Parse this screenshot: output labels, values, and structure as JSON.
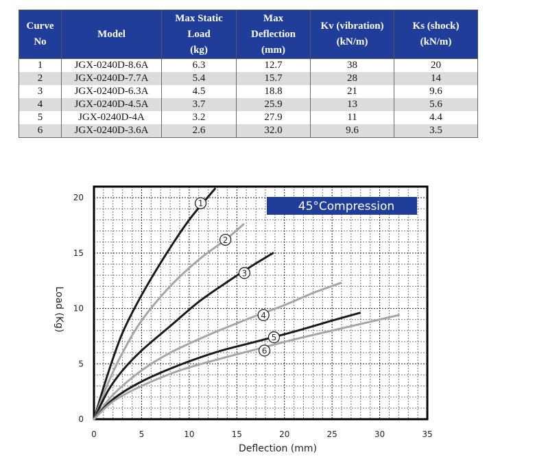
{
  "table": {
    "headers": [
      "Curve No",
      "Model",
      "Max Static Load (kg)",
      "Max Deflection (mm)",
      "Kv (vibration) (kN/m)",
      "Ks (shock) (kN/m)"
    ],
    "header_lines": [
      [
        "Curve",
        "No"
      ],
      [
        "Model"
      ],
      [
        "Max Static",
        "Load",
        "(kg)"
      ],
      [
        "Max",
        "Deflection",
        "(mm)"
      ],
      [
        "Kv (vibration)",
        "(kN/m)"
      ],
      [
        "Ks (shock)",
        "(kN/m)"
      ]
    ],
    "rows": [
      [
        "1",
        "JGX-0240D-8.6A",
        "6.3",
        "12.7",
        "38",
        "20"
      ],
      [
        "2",
        "JGX-0240D-7.7A",
        "5.4",
        "15.7",
        "28",
        "14"
      ],
      [
        "3",
        "JGX-0240D-6.3A",
        "4.5",
        "18.8",
        "21",
        "9.6"
      ],
      [
        "4",
        "JGX-0240D-4.5A",
        "3.7",
        "25.9",
        "13",
        "5.6"
      ],
      [
        "5",
        "JGX-0240D-4A",
        "3.2",
        "27.9",
        "11",
        "4.4"
      ],
      [
        "6",
        "JGX-0240D-3.6A",
        "2.6",
        "32.0",
        "9.6",
        "3.5"
      ]
    ],
    "header_color": "#1f3d99",
    "stripe_color": "#dcdcdc"
  },
  "chart_data": {
    "type": "line",
    "title": "45°Compression",
    "xlabel": "Deflection (mm)",
    "ylabel": "Load (Kg)",
    "xlim": [
      0,
      35
    ],
    "ylim": [
      0,
      21
    ],
    "x_ticks": [
      0,
      5,
      10,
      15,
      20,
      25,
      30,
      35
    ],
    "y_ticks": [
      0,
      5,
      10,
      15,
      20
    ],
    "grid": true,
    "title_bg": "#1f3d99",
    "series": [
      {
        "name": "1",
        "color": "#1a1a1a",
        "label_at": [
          11.2,
          19.5
        ],
        "points": [
          [
            0,
            0
          ],
          [
            1.5,
            4.2
          ],
          [
            3,
            7.8
          ],
          [
            5,
            11.2
          ],
          [
            7.5,
            14.8
          ],
          [
            10,
            18.0
          ],
          [
            12.7,
            20.8
          ]
        ]
      },
      {
        "name": "2",
        "color": "#a6a6a6",
        "label_at": [
          13.8,
          16.2
        ],
        "points": [
          [
            0,
            0
          ],
          [
            1.5,
            3.3
          ],
          [
            3,
            6.0
          ],
          [
            5,
            8.9
          ],
          [
            8,
            12.0
          ],
          [
            11,
            14.4
          ],
          [
            13.8,
            16.2
          ],
          [
            15.7,
            17.6
          ]
        ]
      },
      {
        "name": "3",
        "color": "#1a1a1a",
        "label_at": [
          15.8,
          13.2
        ],
        "points": [
          [
            0,
            0
          ],
          [
            1.5,
            2.6
          ],
          [
            3,
            4.4
          ],
          [
            5,
            6.2
          ],
          [
            8,
            8.4
          ],
          [
            11,
            10.6
          ],
          [
            14,
            12.4
          ],
          [
            16.5,
            13.8
          ],
          [
            18.8,
            15.0
          ]
        ]
      },
      {
        "name": "4",
        "color": "#a6a6a6",
        "label_at": [
          17.8,
          9.4
        ],
        "points": [
          [
            0,
            0
          ],
          [
            2,
            2.2
          ],
          [
            5,
            4.4
          ],
          [
            8,
            6.0
          ],
          [
            12,
            7.6
          ],
          [
            16,
            9.0
          ],
          [
            20,
            10.3
          ],
          [
            23,
            11.4
          ],
          [
            25.9,
            12.3
          ]
        ]
      },
      {
        "name": "5",
        "color": "#1a1a1a",
        "label_at": [
          18.9,
          7.4
        ],
        "points": [
          [
            0,
            0
          ],
          [
            2,
            1.8
          ],
          [
            5,
            3.4
          ],
          [
            9,
            4.9
          ],
          [
            13,
            6.1
          ],
          [
            17,
            7.0
          ],
          [
            21,
            7.9
          ],
          [
            25,
            8.9
          ],
          [
            27.9,
            9.6
          ]
        ]
      },
      {
        "name": "6",
        "color": "#a6a6a6",
        "label_at": [
          17.9,
          6.2
        ],
        "points": [
          [
            0,
            0
          ],
          [
            2,
            1.6
          ],
          [
            5,
            3.0
          ],
          [
            9,
            4.4
          ],
          [
            13,
            5.4
          ],
          [
            17,
            6.3
          ],
          [
            21,
            7.2
          ],
          [
            25,
            8.0
          ],
          [
            28,
            8.6
          ],
          [
            32.0,
            9.4
          ]
        ]
      }
    ]
  }
}
